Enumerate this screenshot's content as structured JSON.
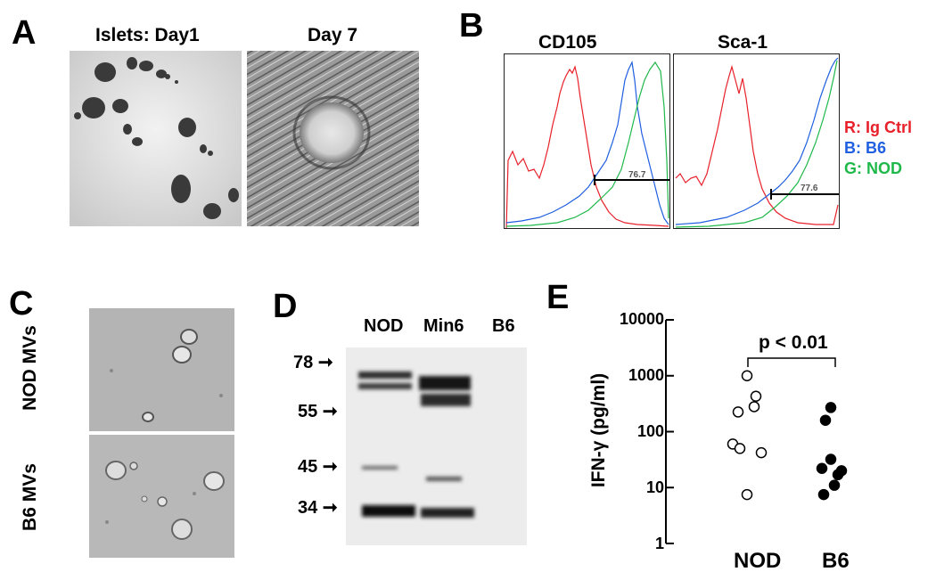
{
  "figure": {
    "panelA": {
      "label": "A",
      "title_left": "Islets: Day1",
      "title_right": "Day 7"
    },
    "panelB": {
      "label": "B",
      "title_left": "CD105",
      "title_right": "Sca-1",
      "gate_left": "76.7",
      "gate_right": "77.6",
      "legend": [
        {
          "text": "R: Ig Ctrl",
          "color": "#e8202a"
        },
        {
          "text": "B: B6",
          "color": "#1f5fe0"
        },
        {
          "text": "G: NOD",
          "color": "#1fb84a"
        }
      ]
    },
    "panelC": {
      "label": "C",
      "row_top": "NOD MVs",
      "row_bottom": "B6 MVs"
    },
    "panelD": {
      "label": "D",
      "lanes": [
        "NOD",
        "Min6",
        "B6"
      ],
      "markers": [
        "78",
        "55",
        "45",
        "34"
      ]
    },
    "panelE": {
      "label": "E",
      "pvalue": "p < 0.01"
    }
  },
  "chart_data": {
    "type": "scatter",
    "title": "",
    "xlabel": "",
    "ylabel": "IFN-γ (pg/ml)",
    "yscale": "log",
    "ylim": [
      1,
      10000
    ],
    "yticks": [
      "1",
      "10",
      "100",
      "1000",
      "10000"
    ],
    "categories": [
      "NOD",
      "B6"
    ],
    "series": [
      {
        "category": "NOD",
        "marker": "open-circle",
        "values": [
          1000,
          430,
          280,
          225,
          60,
          50,
          42,
          7.5
        ]
      },
      {
        "category": "B6",
        "marker": "filled-circle",
        "values": [
          270,
          160,
          32,
          22,
          20,
          17,
          11,
          7.5
        ]
      }
    ]
  }
}
